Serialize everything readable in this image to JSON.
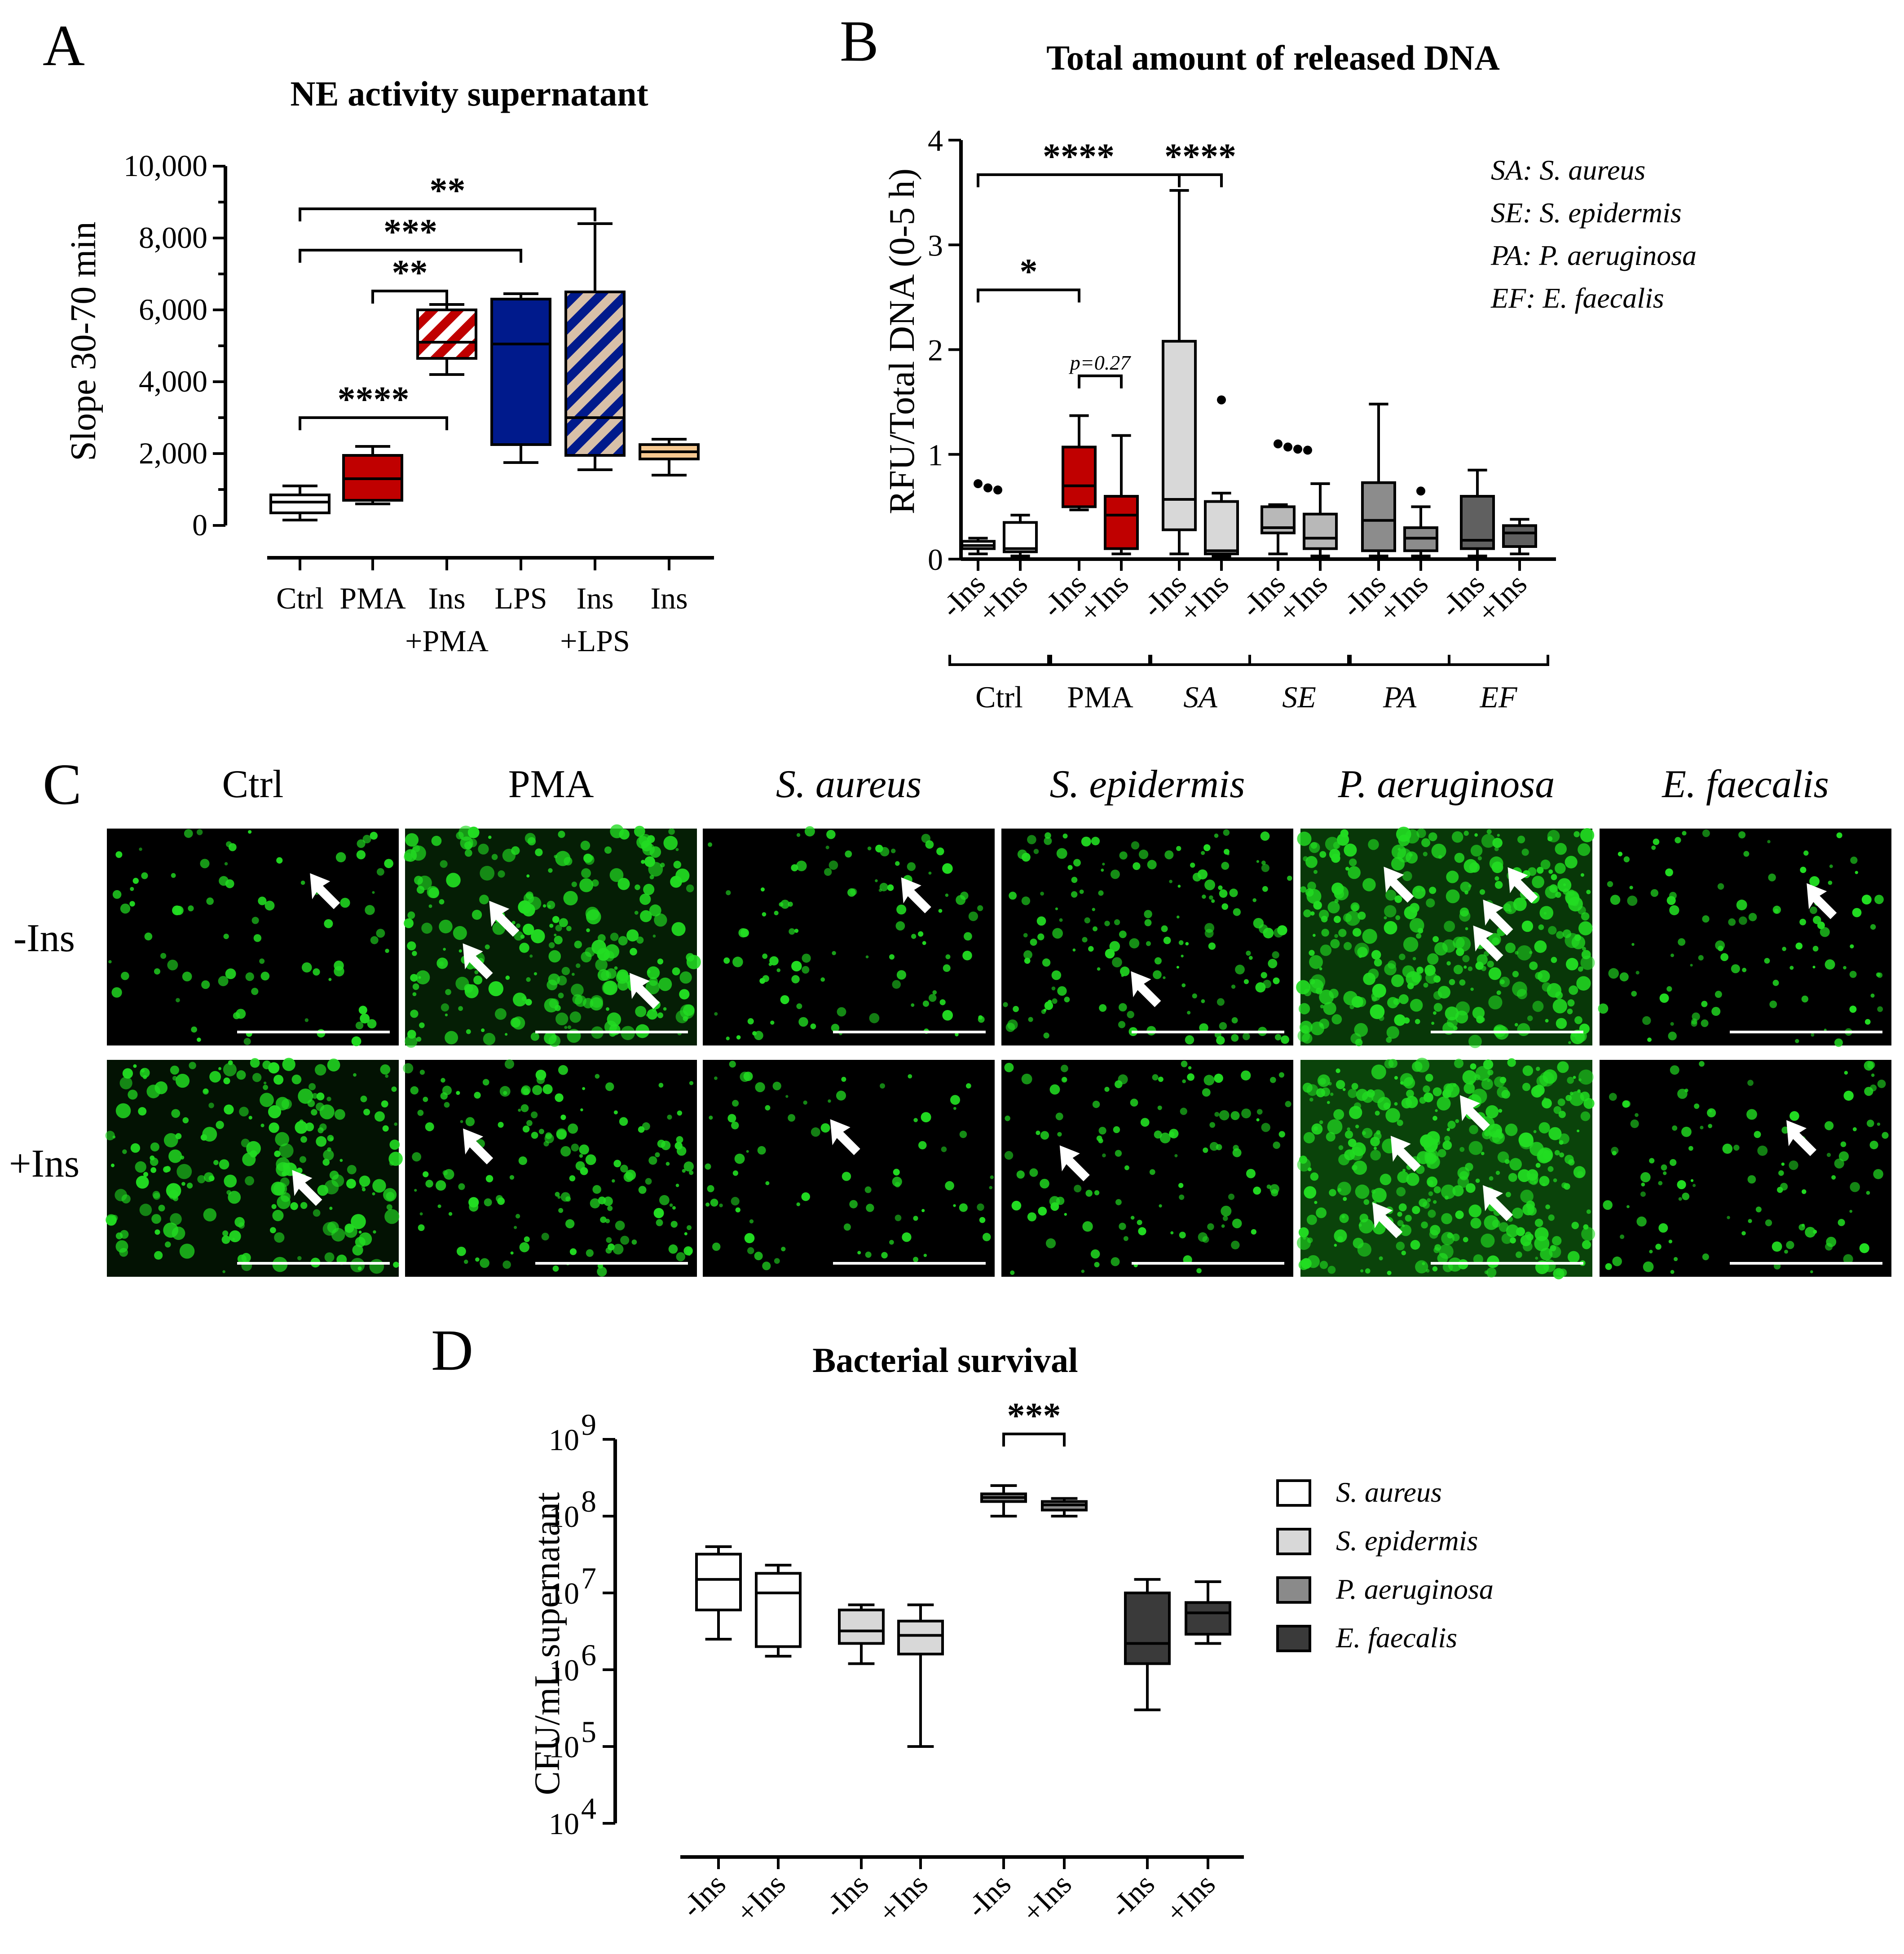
{
  "panels": {
    "A": {
      "letter": "A"
    },
    "B": {
      "letter": "B"
    },
    "C": {
      "letter": "C"
    },
    "D": {
      "letter": "D"
    }
  },
  "colors": {
    "ctrl": "#ffffff",
    "pma": "#c00000",
    "ins_pma_stripe": "#e8a080",
    "lps": "#001a8c",
    "ins_lps_stripe": "#d8c0a8",
    "ins": "#f6c890",
    "sa": "#ffffff",
    "se": "#d8d8d8",
    "pa": "#8a8a8a",
    "ef": "#3a3a3a",
    "b_sa": "#d8d8d8",
    "b_se": "#b8b8b8",
    "b_pa": "#8c8c8c",
    "b_ef": "#606060",
    "fluor": "#22dd22"
  },
  "chart_data": [
    {
      "id": "A",
      "type": "box",
      "title": "NE activity supernatant",
      "ylabel": "Slope 30-70 min",
      "ylim": [
        0,
        10000
      ],
      "yticks": [
        0,
        2000,
        4000,
        6000,
        8000,
        10000
      ],
      "ytick_labels": [
        "0",
        "2,000",
        "4,000",
        "6,000",
        "8,000",
        "10,000"
      ],
      "categories": [
        {
          "line1": "Ctrl",
          "line2": ""
        },
        {
          "line1": "PMA",
          "line2": ""
        },
        {
          "line1": "Ins",
          "line2": "+PMA"
        },
        {
          "line1": "LPS",
          "line2": ""
        },
        {
          "line1": "Ins",
          "line2": "+LPS"
        },
        {
          "line1": "Ins",
          "line2": ""
        }
      ],
      "boxes": [
        {
          "min": 150,
          "q1": 350,
          "median": 650,
          "q3": 850,
          "max": 1100
        },
        {
          "min": 600,
          "q1": 700,
          "median": 1300,
          "q3": 1950,
          "max": 2200
        },
        {
          "min": 4200,
          "q1": 4650,
          "median": 5100,
          "q3": 6000,
          "max": 6150
        },
        {
          "min": 1750,
          "q1": 2250,
          "median": 5050,
          "q3": 6300,
          "max": 6450
        },
        {
          "min": 1550,
          "q1": 1950,
          "median": 3000,
          "q3": 6500,
          "max": 8400
        },
        {
          "min": 1400,
          "q1": 1850,
          "median": 2050,
          "q3": 2250,
          "max": 2400
        }
      ],
      "significance": [
        {
          "from": 0,
          "to": 4,
          "label": "**"
        },
        {
          "from": 0,
          "to": 3,
          "label": "***"
        },
        {
          "from": 1,
          "to": 2,
          "label": "**"
        },
        {
          "from": 0,
          "to": 2,
          "label": "****"
        }
      ]
    },
    {
      "id": "B",
      "type": "box",
      "title": "Total amount of released DNA",
      "ylabel": "RFU/Total DNA (0-5 h)",
      "ylim": [
        0,
        4
      ],
      "yticks": [
        0,
        1,
        2,
        3,
        4
      ],
      "ytick_labels": [
        "0",
        "1",
        "2",
        "3",
        "4"
      ],
      "groups": [
        "Ctrl",
        "PMA",
        "SA",
        "SE",
        "PA",
        "EF"
      ],
      "group_italic": [
        false,
        false,
        true,
        true,
        true,
        true
      ],
      "sublabels": [
        "-Ins",
        "+Ins"
      ],
      "boxes": [
        {
          "min": 0.05,
          "q1": 0.1,
          "median": 0.13,
          "q3": 0.17,
          "max": 0.2,
          "outliers": [
            0.72,
            0.68,
            0.66
          ]
        },
        {
          "min": 0.03,
          "q1": 0.07,
          "median": 0.1,
          "q3": 0.35,
          "max": 0.42,
          "outliers": []
        },
        {
          "min": 0.47,
          "q1": 0.5,
          "median": 0.7,
          "q3": 1.07,
          "max": 1.37,
          "outliers": []
        },
        {
          "min": 0.05,
          "q1": 0.1,
          "median": 0.42,
          "q3": 0.6,
          "max": 1.18,
          "outliers": []
        },
        {
          "min": 0.05,
          "q1": 0.28,
          "median": 0.57,
          "q3": 2.08,
          "max": 3.52,
          "outliers": []
        },
        {
          "min": 0.03,
          "q1": 0.05,
          "median": 0.08,
          "q3": 0.55,
          "max": 0.63,
          "outliers": [
            1.52
          ]
        },
        {
          "min": 0.05,
          "q1": 0.25,
          "median": 0.3,
          "q3": 0.5,
          "max": 0.52,
          "outliers": [
            1.1,
            1.07,
            1.05,
            1.04
          ]
        },
        {
          "min": 0.03,
          "q1": 0.1,
          "median": 0.2,
          "q3": 0.43,
          "max": 0.72,
          "outliers": []
        },
        {
          "min": 0.03,
          "q1": 0.08,
          "median": 0.37,
          "q3": 0.73,
          "max": 1.48,
          "outliers": []
        },
        {
          "min": 0.03,
          "q1": 0.08,
          "median": 0.2,
          "q3": 0.3,
          "max": 0.5,
          "outliers": [
            0.65
          ]
        },
        {
          "min": 0.03,
          "q1": 0.1,
          "median": 0.18,
          "q3": 0.6,
          "max": 0.85,
          "outliers": []
        },
        {
          "min": 0.05,
          "q1": 0.12,
          "median": 0.25,
          "q3": 0.32,
          "max": 0.38,
          "outliers": []
        }
      ],
      "significance": [
        {
          "from": 0,
          "to": 4,
          "label": "****",
          "y": 3.67
        },
        {
          "from": 4,
          "to": 5,
          "label": "****",
          "y": 3.67
        },
        {
          "from": 0,
          "to": 2,
          "label": "*",
          "y": 2.57
        },
        {
          "from": 2,
          "to": 3,
          "label": "p=0.27",
          "y": 1.75
        }
      ],
      "legend": [
        "SA: S. aureus",
        "SE: S. epidermis",
        "PA: P. aeruginosa",
        "EF: E. faecalis"
      ]
    },
    {
      "id": "D",
      "type": "box",
      "title": "Bacterial survival",
      "ylabel": "CFU/mL supernatant",
      "yscale": "log",
      "ylim": [
        10000,
        1000000000
      ],
      "ytick_exponents": [
        "4",
        "5",
        "6",
        "7",
        "8",
        "9"
      ],
      "ytick_base": "10",
      "sublabels": [
        "-Ins",
        "+Ins"
      ],
      "boxes": [
        {
          "group": 0,
          "min": 2500000,
          "q1": 6000000,
          "median": 15000000,
          "q3": 32000000,
          "max": 40000000
        },
        {
          "group": 0,
          "min": 1500000,
          "q1": 2000000,
          "median": 10000000,
          "q3": 18000000,
          "max": 23000000
        },
        {
          "group": 1,
          "min": 1200000,
          "q1": 2200000,
          "median": 3200000,
          "q3": 6000000,
          "max": 7000000
        },
        {
          "group": 1,
          "min": 100000,
          "q1": 1600000,
          "median": 2800000,
          "q3": 4300000,
          "max": 7000000
        },
        {
          "group": 2,
          "min": 100000000,
          "q1": 155000000,
          "median": 175000000,
          "q3": 195000000,
          "max": 250000000
        },
        {
          "group": 2,
          "min": 100000000,
          "q1": 120000000,
          "median": 140000000,
          "q3": 155000000,
          "max": 170000000
        },
        {
          "group": 3,
          "min": 300000,
          "q1": 1200000,
          "median": 2200000,
          "q3": 10000000,
          "max": 15000000
        },
        {
          "group": 3,
          "min": 2200000,
          "q1": 2900000,
          "median": 5500000,
          "q3": 7500000,
          "max": 14000000
        }
      ],
      "significance": [
        {
          "from": 4,
          "to": 5,
          "label": "***"
        }
      ],
      "legend": [
        "S. aureus",
        "S. epidermis",
        "P. aeruginosa",
        "E. faecalis"
      ]
    }
  ],
  "micrographs": {
    "columns": [
      "Ctrl",
      "PMA",
      "S. aureus",
      "S. epidermis",
      "P. aeruginosa",
      "E. faecalis"
    ],
    "columns_italic": [
      false,
      false,
      true,
      true,
      true,
      true
    ],
    "rows": [
      "-Ins",
      "+Ins"
    ],
    "density": [
      [
        0.12,
        0.65,
        0.18,
        0.35,
        0.85,
        0.18
      ],
      [
        0.55,
        0.35,
        0.12,
        0.22,
        0.95,
        0.2
      ]
    ],
    "arrows": [
      [
        1,
        3,
        1,
        1,
        4,
        1
      ],
      [
        1,
        1,
        1,
        1,
        4,
        1
      ]
    ]
  }
}
